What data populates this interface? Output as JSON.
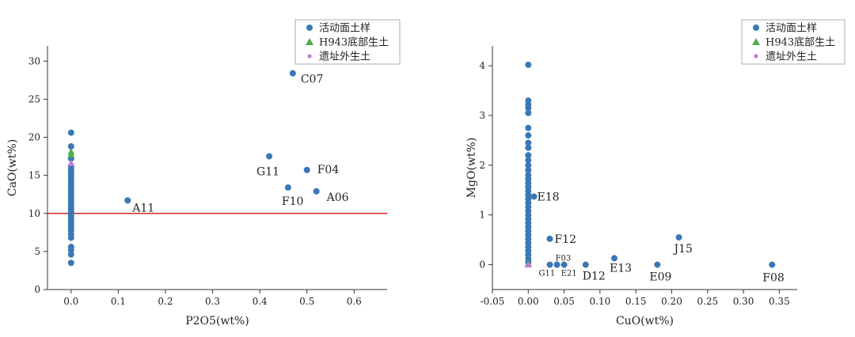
{
  "chart_data": [
    {
      "type": "scatter",
      "xlabel": "P2O5(wt%)",
      "ylabel": "CaO(wt%)",
      "xlim": [
        -0.05,
        0.67
      ],
      "ylim": [
        0,
        32
      ],
      "x_ticks": [
        0,
        0.1,
        0.2,
        0.3,
        0.4,
        0.5,
        0.6
      ],
      "x_tick_labels": [
        "0.0",
        "0.1",
        "0.2",
        "0.3",
        "0.4",
        "0.5",
        "0.6"
      ],
      "y_ticks": [
        0,
        5,
        10,
        15,
        20,
        25,
        30
      ],
      "y_tick_labels": [
        "0",
        "5",
        "10",
        "15",
        "20",
        "25",
        "30"
      ],
      "colors": {
        "series_1": "#3a78b5",
        "series_2": "#4cae4c",
        "series_3": "#c27bd6",
        "reference_line": "#d62728"
      },
      "legend": {
        "position": "top-right",
        "entries": [
          "活动面土样",
          "H943底部生土",
          "遗址外生土"
        ]
      },
      "reference_line": {
        "y": 10
      },
      "series": [
        {
          "name": "活动面土样",
          "marker": "circle",
          "points": [
            [
              0,
              3.5
            ],
            [
              0,
              4.6
            ],
            [
              0,
              5.2
            ],
            [
              0,
              5.6
            ],
            [
              0,
              6.8
            ],
            [
              0,
              7.3
            ],
            [
              0,
              7.8
            ],
            [
              0,
              8.2
            ],
            [
              0,
              8.6
            ],
            [
              0,
              9.0
            ],
            [
              0,
              9.4
            ],
            [
              0,
              9.8
            ],
            [
              0,
              10.2
            ],
            [
              0,
              10.6
            ],
            [
              0,
              11.0
            ],
            [
              0,
              11.4
            ],
            [
              0,
              11.8
            ],
            [
              0,
              12.2
            ],
            [
              0,
              12.6
            ],
            [
              0,
              13.0
            ],
            [
              0,
              13.4
            ],
            [
              0,
              13.8
            ],
            [
              0,
              14.2
            ],
            [
              0,
              14.6
            ],
            [
              0,
              15.0
            ],
            [
              0,
              15.4
            ],
            [
              0,
              15.8
            ],
            [
              0,
              16.2
            ],
            [
              0,
              17.2
            ],
            [
              0,
              18.8
            ],
            [
              0,
              20.6
            ],
            [
              0.12,
              11.7
            ],
            [
              0.42,
              17.5
            ],
            [
              0.46,
              13.4
            ],
            [
              0.47,
              28.4
            ],
            [
              0.5,
              15.7
            ],
            [
              0.52,
              12.9
            ]
          ]
        },
        {
          "name": "H943底部生土",
          "marker": "triangle",
          "points": [
            [
              0,
              18.1
            ],
            [
              0,
              17.7
            ]
          ]
        },
        {
          "name": "遗址外生土",
          "marker": "triangle",
          "points": [
            [
              0,
              16.6
            ]
          ]
        }
      ],
      "annotations": [
        {
          "text": "C07",
          "x": 0.47,
          "y": 28.4
        },
        {
          "text": "G11",
          "x": 0.42,
          "y": 17.5
        },
        {
          "text": "F04",
          "x": 0.5,
          "y": 15.7
        },
        {
          "text": "F10",
          "x": 0.46,
          "y": 13.4
        },
        {
          "text": "A06",
          "x": 0.52,
          "y": 12.9
        },
        {
          "text": "A11",
          "x": 0.12,
          "y": 11.7
        }
      ]
    },
    {
      "type": "scatter",
      "xlabel": "CuO(wt%)",
      "ylabel": "MgO(wt%)",
      "xlim": [
        -0.05,
        0.375
      ],
      "ylim": [
        -0.5,
        4.4
      ],
      "x_ticks": [
        -0.05,
        0,
        0.05,
        0.1,
        0.15,
        0.2,
        0.25,
        0.3,
        0.35
      ],
      "x_tick_labels": [
        "-0.05",
        "0.00",
        "0.05",
        "0.10",
        "0.15",
        "0.20",
        "0.25",
        "0.30",
        "0.35"
      ],
      "y_ticks": [
        0,
        1,
        2,
        3,
        4
      ],
      "y_tick_labels": [
        "0",
        "1",
        "2",
        "3",
        "4"
      ],
      "colors": {
        "series_1": "#3a78b5",
        "series_2": "#4cae4c",
        "series_3": "#c27bd6"
      },
      "legend": {
        "position": "top-right",
        "entries": [
          "活动面土样",
          "H943底部生土",
          "遗址外生土"
        ]
      },
      "series": [
        {
          "name": "活动面土样",
          "marker": "circle",
          "points": [
            [
              0,
              0.05
            ],
            [
              0,
              0.12
            ],
            [
              0,
              0.2
            ],
            [
              0,
              0.28
            ],
            [
              0,
              0.36
            ],
            [
              0,
              0.44
            ],
            [
              0,
              0.52
            ],
            [
              0,
              0.6
            ],
            [
              0,
              0.68
            ],
            [
              0,
              0.76
            ],
            [
              0,
              0.84
            ],
            [
              0,
              0.92
            ],
            [
              0,
              1.0
            ],
            [
              0,
              1.08
            ],
            [
              0,
              1.16
            ],
            [
              0,
              1.24
            ],
            [
              0,
              1.32
            ],
            [
              0,
              1.4
            ],
            [
              0,
              1.48
            ],
            [
              0,
              1.56
            ],
            [
              0,
              1.64
            ],
            [
              0,
              1.72
            ],
            [
              0,
              1.8
            ],
            [
              0,
              1.9
            ],
            [
              0,
              2.0
            ],
            [
              0,
              2.1
            ],
            [
              0,
              2.2
            ],
            [
              0,
              2.35
            ],
            [
              0,
              2.45
            ],
            [
              0,
              2.6
            ],
            [
              0,
              2.75
            ],
            [
              0,
              3.05
            ],
            [
              0,
              3.15
            ],
            [
              0,
              3.22
            ],
            [
              0,
              3.3
            ],
            [
              0,
              4.02
            ],
            [
              0.008,
              1.37
            ],
            [
              0.03,
              0.52
            ],
            [
              0.03,
              0.0
            ],
            [
              0.04,
              0.0
            ],
            [
              0.05,
              0.0
            ],
            [
              0.08,
              0.0
            ],
            [
              0.12,
              0.13
            ],
            [
              0.18,
              0.0
            ],
            [
              0.21,
              0.55
            ],
            [
              0.34,
              0.0
            ]
          ]
        },
        {
          "name": "H943底部生土",
          "marker": "triangle",
          "points": [
            [
              0,
              0.02
            ]
          ]
        },
        {
          "name": "遗址外生土",
          "marker": "triangle",
          "points": [
            [
              0,
              0.0
            ]
          ]
        }
      ],
      "annotations": [
        {
          "text": "E18",
          "x": 0.008,
          "y": 1.37
        },
        {
          "text": "F12",
          "x": 0.03,
          "y": 0.52
        },
        {
          "text": "F03",
          "x": 0.04,
          "y": 0.0,
          "small": true
        },
        {
          "text": "G11",
          "x": 0.03,
          "y": 0.0,
          "small": true
        },
        {
          "text": "E21",
          "x": 0.05,
          "y": 0.0,
          "small": true
        },
        {
          "text": "D12",
          "x": 0.08,
          "y": 0.0
        },
        {
          "text": "E13",
          "x": 0.12,
          "y": 0.13
        },
        {
          "text": "E09",
          "x": 0.18,
          "y": 0.0
        },
        {
          "text": "J15",
          "x": 0.21,
          "y": 0.55
        },
        {
          "text": "F08",
          "x": 0.34,
          "y": 0.0
        }
      ]
    }
  ]
}
